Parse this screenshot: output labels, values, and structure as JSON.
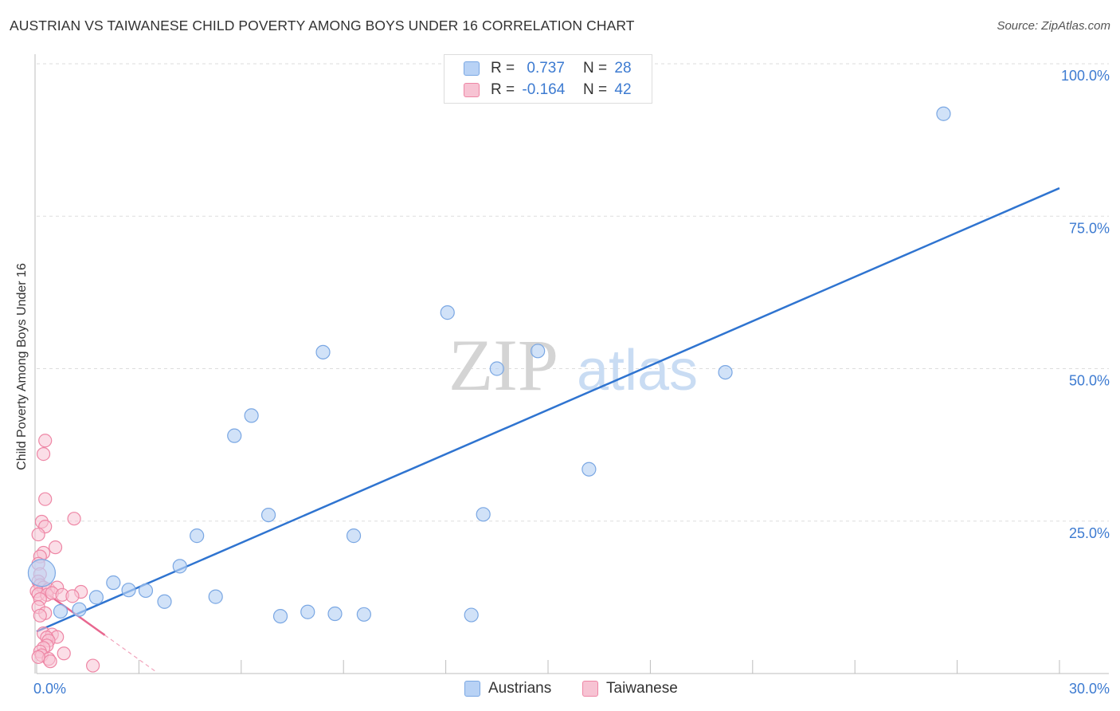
{
  "header": {
    "title": "AUSTRIAN VS TAIWANESE CHILD POVERTY AMONG BOYS UNDER 16 CORRELATION CHART",
    "source": "Source: ZipAtlas.com"
  },
  "watermark": {
    "zip": "ZIP",
    "atlas": "atlas"
  },
  "colors": {
    "blue_fill": "#b8d2f5",
    "blue_stroke": "#7aa7e3",
    "blue_line": "#2f74d0",
    "pink_fill": "#f7c3d3",
    "pink_stroke": "#ee86a5",
    "pink_line": "#e8678f",
    "tick_text": "#3d7bd1",
    "grid": "#dddddd"
  },
  "legend": {
    "rows": [
      {
        "r_label": "R =",
        "r_value": "0.737",
        "n_label": "N =",
        "n_value": "28"
      },
      {
        "r_label": "R =",
        "r_value": "-0.164",
        "n_label": "N =",
        "n_value": "42"
      }
    ]
  },
  "bottom_legend": {
    "austrians": "Austrians",
    "taiwanese": "Taiwanese"
  },
  "chart_data": {
    "type": "scatter",
    "title": "AUSTRIAN VS TAIWANESE CHILD POVERTY AMONG BOYS UNDER 16 CORRELATION CHART",
    "xlabel": "",
    "ylabel": "Child Poverty Among Boys Under 16",
    "xlim": [
      0,
      30
    ],
    "ylim": [
      0,
      100
    ],
    "x_tick_labels": [
      "0.0%",
      "30.0%"
    ],
    "y_tick_labels": [
      "100.0%",
      "75.0%",
      "50.0%",
      "25.0%"
    ],
    "y_ticks": [
      100,
      75,
      50,
      25
    ],
    "x_ticks": [
      0,
      3,
      6,
      9,
      12,
      15,
      18,
      21,
      24,
      27,
      30
    ],
    "grid": true,
    "legend_position": "bottom-center",
    "series": [
      {
        "name": "Austrians",
        "r": 0.737,
        "n": 28,
        "trend": {
          "x": [
            0,
            30
          ],
          "y": [
            6.9,
            79.6
          ]
        },
        "points": [
          {
            "x": 0.15,
            "y": 16.5,
            "big": true
          },
          {
            "x": 0.7,
            "y": 10.2
          },
          {
            "x": 1.25,
            "y": 10.5
          },
          {
            "x": 1.75,
            "y": 12.5
          },
          {
            "x": 2.25,
            "y": 14.9
          },
          {
            "x": 2.7,
            "y": 13.7
          },
          {
            "x": 3.2,
            "y": 13.6
          },
          {
            "x": 3.75,
            "y": 11.8
          },
          {
            "x": 4.2,
            "y": 17.6
          },
          {
            "x": 4.7,
            "y": 22.6
          },
          {
            "x": 5.25,
            "y": 12.6
          },
          {
            "x": 5.8,
            "y": 39.0
          },
          {
            "x": 6.3,
            "y": 42.3
          },
          {
            "x": 6.8,
            "y": 26.0
          },
          {
            "x": 7.15,
            "y": 9.4
          },
          {
            "x": 7.95,
            "y": 10.1
          },
          {
            "x": 8.4,
            "y": 52.7
          },
          {
            "x": 8.75,
            "y": 9.8
          },
          {
            "x": 9.3,
            "y": 22.6
          },
          {
            "x": 9.6,
            "y": 9.7
          },
          {
            "x": 12.05,
            "y": 59.2
          },
          {
            "x": 12.75,
            "y": 9.6
          },
          {
            "x": 13.1,
            "y": 26.1
          },
          {
            "x": 13.5,
            "y": 50.0
          },
          {
            "x": 14.7,
            "y": 52.9
          },
          {
            "x": 16.2,
            "y": 33.5
          },
          {
            "x": 20.2,
            "y": 49.4
          },
          {
            "x": 26.6,
            "y": 91.8
          }
        ]
      },
      {
        "name": "Taiwanese",
        "r": -0.164,
        "n": 42,
        "trend": {
          "x": [
            0,
            2.0,
            3.5
          ],
          "y": [
            14.3,
            6.3,
            0.3
          ]
        },
        "points": [
          {
            "x": 0.25,
            "y": 38.2
          },
          {
            "x": 0.2,
            "y": 36.0
          },
          {
            "x": 0.25,
            "y": 28.6
          },
          {
            "x": 1.1,
            "y": 25.4
          },
          {
            "x": 0.15,
            "y": 24.9
          },
          {
            "x": 0.25,
            "y": 24.1
          },
          {
            "x": 0.05,
            "y": 22.8
          },
          {
            "x": 0.55,
            "y": 20.7
          },
          {
            "x": 0.2,
            "y": 19.8
          },
          {
            "x": 0.1,
            "y": 19.2
          },
          {
            "x": 0.05,
            "y": 18.0
          },
          {
            "x": 0.1,
            "y": 16.3
          },
          {
            "x": 0.05,
            "y": 15.1
          },
          {
            "x": 0.1,
            "y": 14.5
          },
          {
            "x": 0.2,
            "y": 14.1
          },
          {
            "x": 0.35,
            "y": 13.8
          },
          {
            "x": 0.6,
            "y": 14.1
          },
          {
            "x": 1.3,
            "y": 13.4
          },
          {
            "x": 0.0,
            "y": 13.5
          },
          {
            "x": 0.05,
            "y": 13.0
          },
          {
            "x": 0.3,
            "y": 12.9
          },
          {
            "x": 0.45,
            "y": 13.2
          },
          {
            "x": 0.75,
            "y": 12.9
          },
          {
            "x": 1.05,
            "y": 12.7
          },
          {
            "x": 0.1,
            "y": 12.2
          },
          {
            "x": 0.05,
            "y": 10.9
          },
          {
            "x": 0.25,
            "y": 9.9
          },
          {
            "x": 0.1,
            "y": 9.5
          },
          {
            "x": 0.2,
            "y": 6.6
          },
          {
            "x": 0.45,
            "y": 6.4
          },
          {
            "x": 0.6,
            "y": 6.0
          },
          {
            "x": 0.3,
            "y": 5.9
          },
          {
            "x": 0.35,
            "y": 5.4
          },
          {
            "x": 0.3,
            "y": 4.6
          },
          {
            "x": 0.2,
            "y": 4.2
          },
          {
            "x": 0.1,
            "y": 3.6
          },
          {
            "x": 0.15,
            "y": 3.0
          },
          {
            "x": 0.35,
            "y": 2.4
          },
          {
            "x": 0.4,
            "y": 2.0
          },
          {
            "x": 0.8,
            "y": 3.3
          },
          {
            "x": 0.05,
            "y": 2.7
          },
          {
            "x": 1.65,
            "y": 1.3
          }
        ]
      }
    ]
  }
}
